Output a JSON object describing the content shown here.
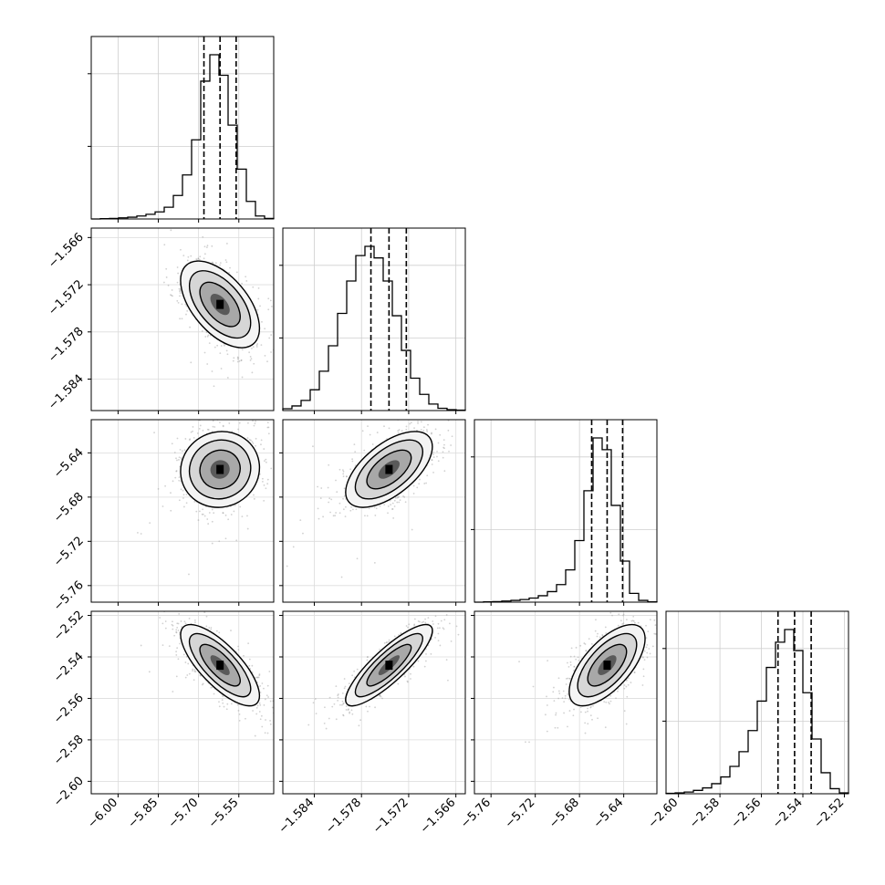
{
  "chart_data": {
    "type": "scatter",
    "title": "",
    "parameters": [
      {
        "name": "",
        "range": [
          -6.1,
          -5.42
        ],
        "ticks": [
          -6.0,
          -5.85,
          -5.7,
          -5.55
        ],
        "tick_labels": [
          "−6.00",
          "−5.85",
          "−5.70",
          "−5.55"
        ],
        "median": -5.62,
        "q16": -5.68,
        "q84": -5.56
      },
      {
        "name": "",
        "range": [
          -1.588,
          -1.5648
        ],
        "ticks": [
          -1.584,
          -1.578,
          -1.572,
          -1.566
        ],
        "tick_labels": [
          "−1.584",
          "−1.578",
          "−1.572",
          "−1.566"
        ],
        "median": -1.5745,
        "q16": -1.5768,
        "q84": -1.5723
      },
      {
        "name": "",
        "range": [
          -5.775,
          -5.61
        ],
        "ticks": [
          -5.76,
          -5.72,
          -5.68,
          -5.64
        ],
        "tick_labels": [
          "−5.76",
          "−5.72",
          "−5.68",
          "−5.64"
        ],
        "median": -5.655,
        "q16": -5.669,
        "q84": -5.641
      },
      {
        "name": "",
        "range": [
          -2.606,
          -2.518
        ],
        "ticks": [
          -2.6,
          -2.58,
          -2.56,
          -2.54,
          -2.52
        ],
        "tick_labels": [
          "−2.60",
          "−2.58",
          "−2.56",
          "−2.54",
          "−2.52"
        ],
        "median": -2.544,
        "q16": -2.552,
        "q84": -2.536
      }
    ],
    "pair_correlations": [
      {
        "row": 1,
        "col": 0,
        "rho": -0.55
      },
      {
        "row": 2,
        "col": 0,
        "rho": 0.05
      },
      {
        "row": 2,
        "col": 1,
        "rho": 0.6
      },
      {
        "row": 3,
        "col": 0,
        "rho": -0.75
      },
      {
        "row": 3,
        "col": 1,
        "rho": 0.85
      },
      {
        "row": 3,
        "col": 2,
        "rho": 0.65
      }
    ],
    "histograms": [
      {
        "param": 0,
        "bins": 20,
        "counts": [
          0,
          1,
          2,
          4,
          6,
          10,
          16,
          24,
          40,
          80,
          150,
          270,
          470,
          560,
          490,
          320,
          170,
          60,
          10,
          2
        ]
      },
      {
        "param": 1,
        "bins": 20,
        "counts": [
          4,
          10,
          22,
          45,
          85,
          140,
          210,
          280,
          335,
          355,
          330,
          280,
          205,
          130,
          70,
          35,
          14,
          5,
          2,
          1
        ]
      },
      {
        "param": 2,
        "bins": 20,
        "counts": [
          0,
          1,
          2,
          4,
          6,
          9,
          14,
          22,
          36,
          60,
          110,
          210,
          380,
          560,
          520,
          330,
          140,
          30,
          6,
          1
        ]
      },
      {
        "param": 3,
        "bins": 20,
        "counts": [
          1,
          2,
          4,
          8,
          14,
          24,
          40,
          65,
          100,
          150,
          220,
          300,
          360,
          390,
          340,
          240,
          130,
          50,
          12,
          2
        ]
      }
    ],
    "grid": true,
    "legend": "none"
  }
}
